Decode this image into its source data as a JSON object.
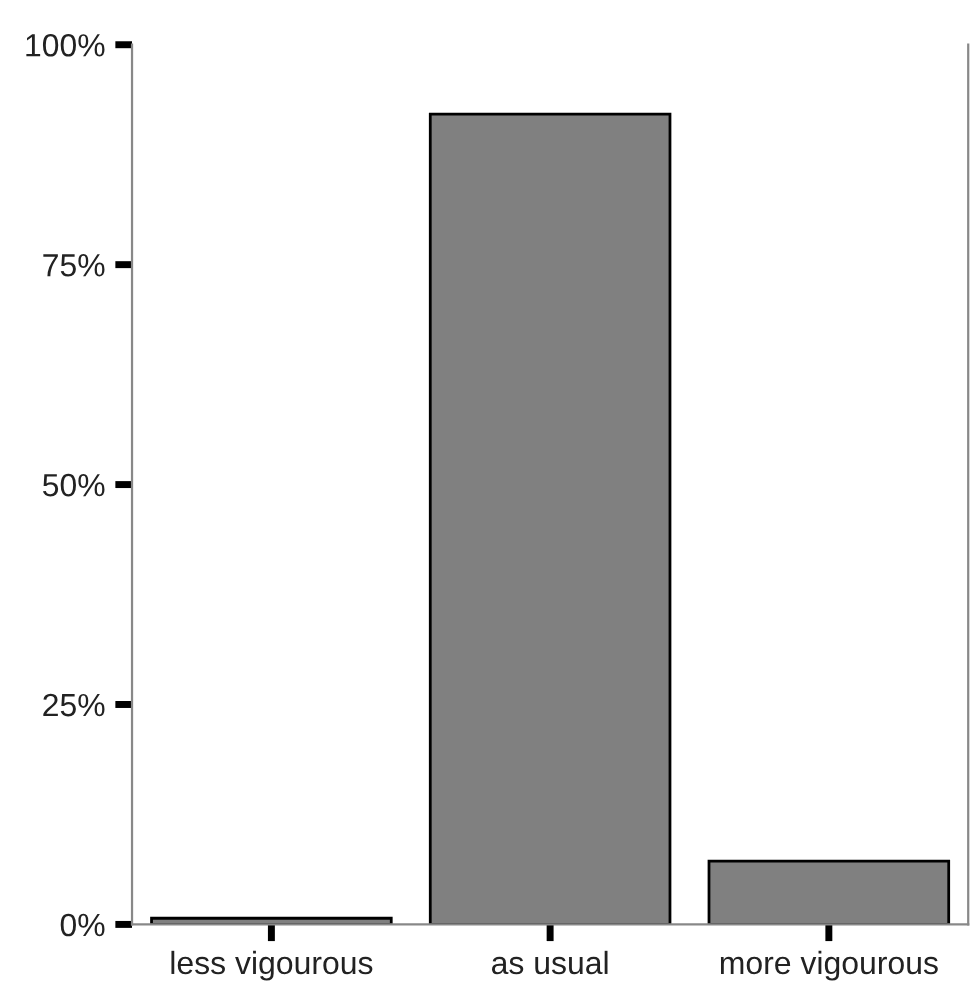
{
  "chart_data": {
    "type": "bar",
    "categories": [
      "less vigourous",
      "as usual",
      "more vigourous"
    ],
    "values": [
      0.7,
      92.1,
      7.2
    ],
    "color": "#808080",
    "ylim": [
      0,
      100
    ],
    "yticks": [
      {
        "value": 0,
        "label": "0%"
      },
      {
        "value": 25,
        "label": "25%"
      },
      {
        "value": 50,
        "label": "50%"
      },
      {
        "value": 75,
        "label": "75%"
      },
      {
        "value": 100,
        "label": "100%"
      }
    ],
    "grid": false
  }
}
